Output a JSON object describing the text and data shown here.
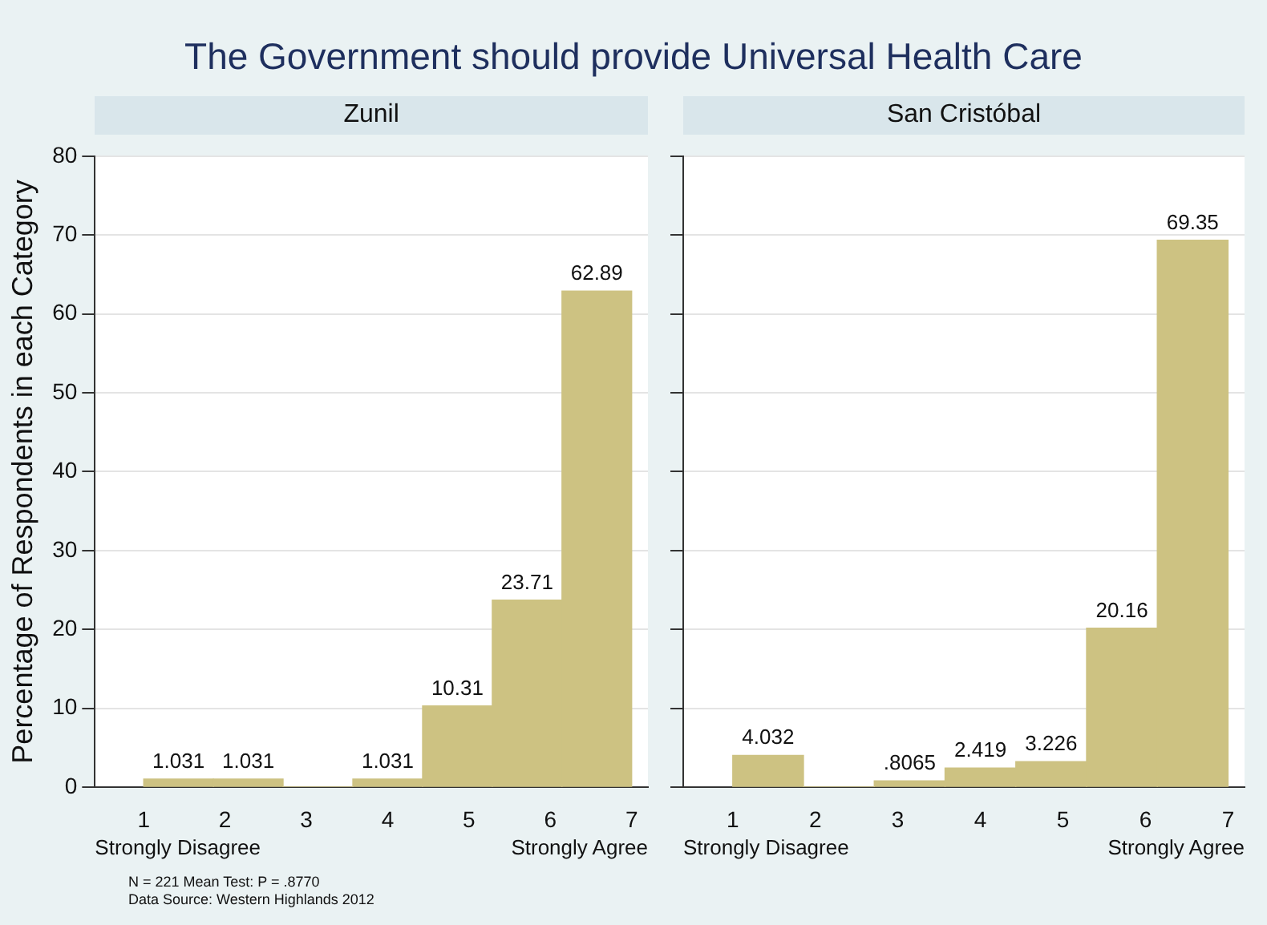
{
  "chart_data": [
    {
      "type": "histogram",
      "title": "The Government should provide Universal Health Care",
      "subtitle": "Zunil",
      "ylabel": "Percentage of Respondents in each Category",
      "bins": [
        1,
        1.857,
        2.714,
        3.571,
        4.429,
        5.286,
        6.143,
        7
      ],
      "values": [
        1.031,
        1.031,
        0,
        1.031,
        10.31,
        23.71,
        62.89
      ],
      "value_labels": [
        "1.031",
        "1.031",
        null,
        "1.031",
        "10.31",
        "23.71",
        "62.89"
      ],
      "color": "#cdc282",
      "xlim": [
        0.4,
        7.2
      ],
      "ylim": [
        0,
        80
      ],
      "xticks": [
        1,
        2,
        3,
        4,
        5,
        6,
        7
      ],
      "yticks": [
        0,
        10,
        20,
        30,
        40,
        50,
        60,
        70,
        80
      ],
      "grid": "y",
      "annotations": [
        "Strongly Disagree",
        "Strongly Agree",
        "N = 221 Mean Test: P = .8770",
        "Data Source: Western Highlands 2012"
      ]
    },
    {
      "type": "histogram",
      "subtitle": "San Cristóbal",
      "bins": [
        1,
        1.857,
        2.714,
        3.571,
        4.429,
        5.286,
        6.143,
        7
      ],
      "values": [
        4.032,
        0,
        0.8065,
        2.419,
        3.226,
        20.16,
        69.35
      ],
      "value_labels": [
        "4.032",
        null,
        ".8065",
        "2.419",
        "3.226",
        "20.16",
        "69.35"
      ],
      "color": "#cdc282",
      "xlim": [
        0.4,
        7.2
      ],
      "ylim": [
        0,
        80
      ],
      "xticks": [
        1,
        2,
        3,
        4,
        5,
        6,
        7
      ],
      "yticks": [
        0,
        10,
        20,
        30,
        40,
        50,
        60,
        70,
        80
      ],
      "grid": "y",
      "tick_labels": "x",
      "annotations": [
        "Strongly Disagree",
        "Strongly Agree"
      ]
    }
  ]
}
